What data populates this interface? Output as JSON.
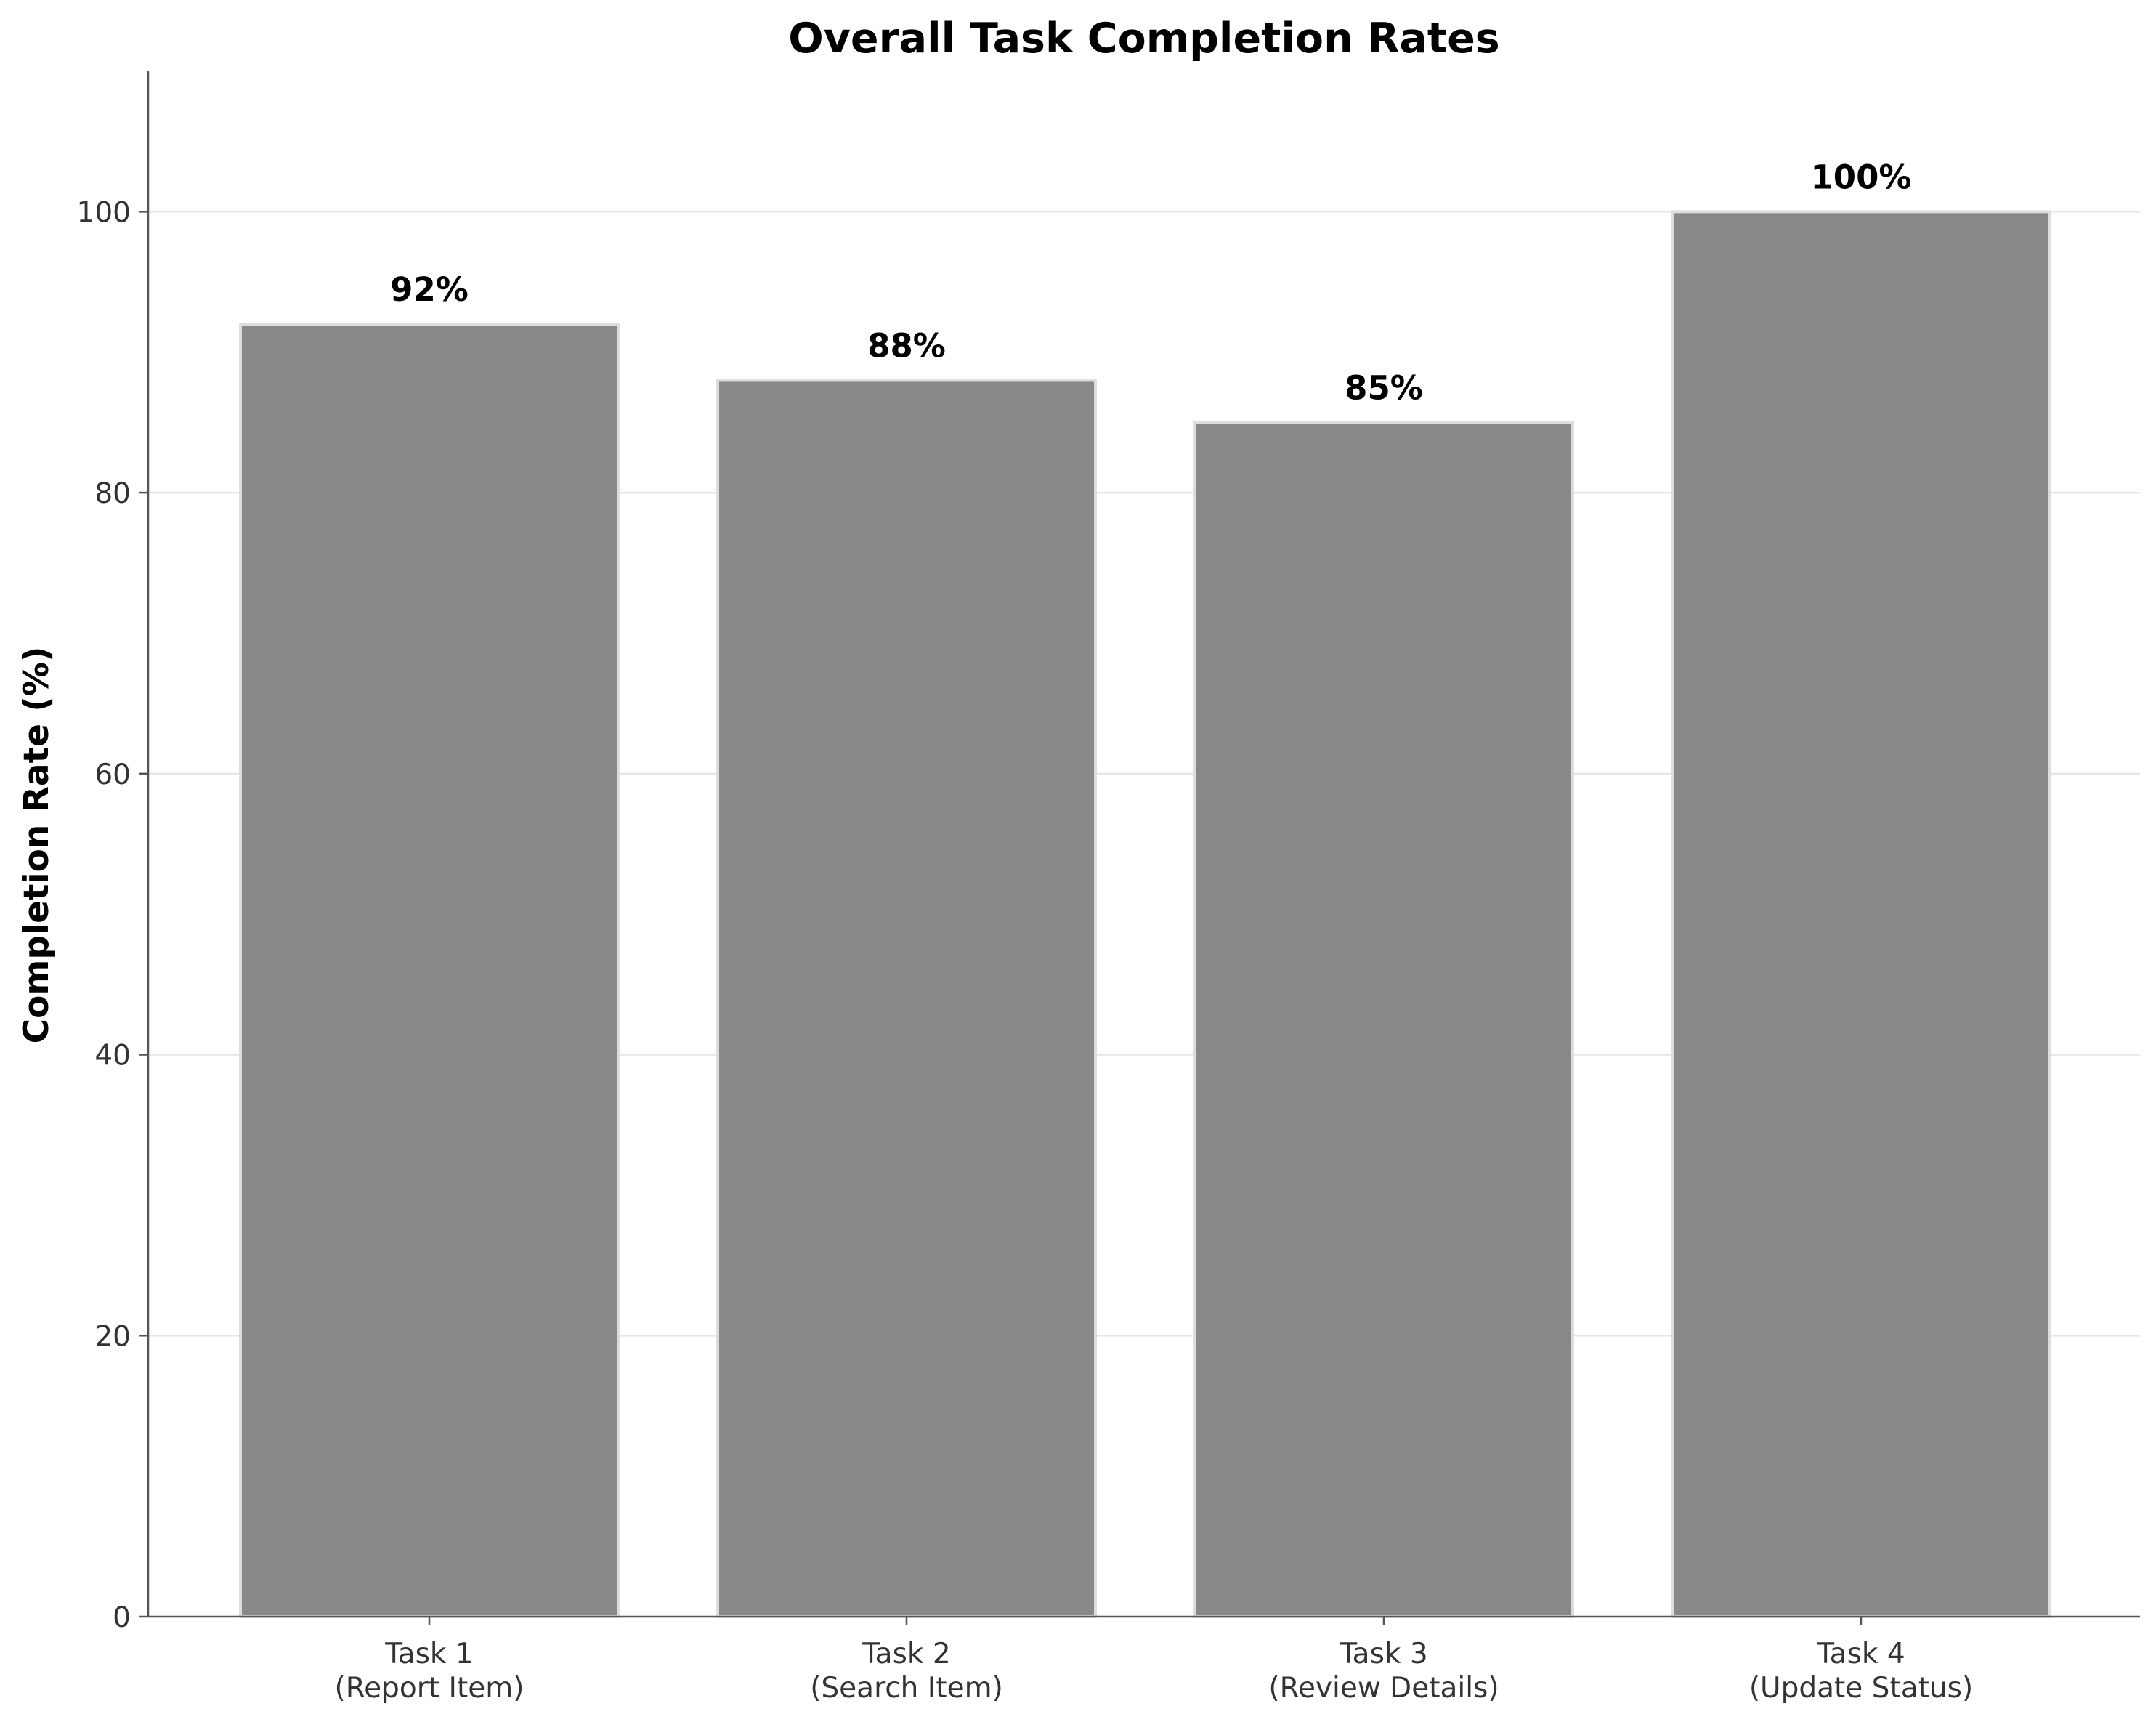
{
  "chart_data": {
    "type": "bar",
    "title": "Overall Task Completion Rates",
    "xlabel": "",
    "ylabel": "Completion Rate (%)",
    "categories": [
      [
        "Task 1",
        "(Report Item)"
      ],
      [
        "Task 2",
        "(Search Item)"
      ],
      [
        "Task 3",
        "(Review Details)"
      ],
      [
        "Task 4",
        "(Update Status)"
      ]
    ],
    "values": [
      92,
      88,
      85,
      100
    ],
    "value_labels": [
      "92%",
      "88%",
      "85%",
      "100%"
    ],
    "ylim": [
      0,
      110
    ],
    "yticks": [
      0,
      20,
      40,
      60,
      80,
      100
    ],
    "grid": "y",
    "legend": "none",
    "colors": {
      "bar": "#888888",
      "bar_edge": "#dddddd",
      "grid": "#e6e6e6",
      "axis": "#555555"
    }
  }
}
